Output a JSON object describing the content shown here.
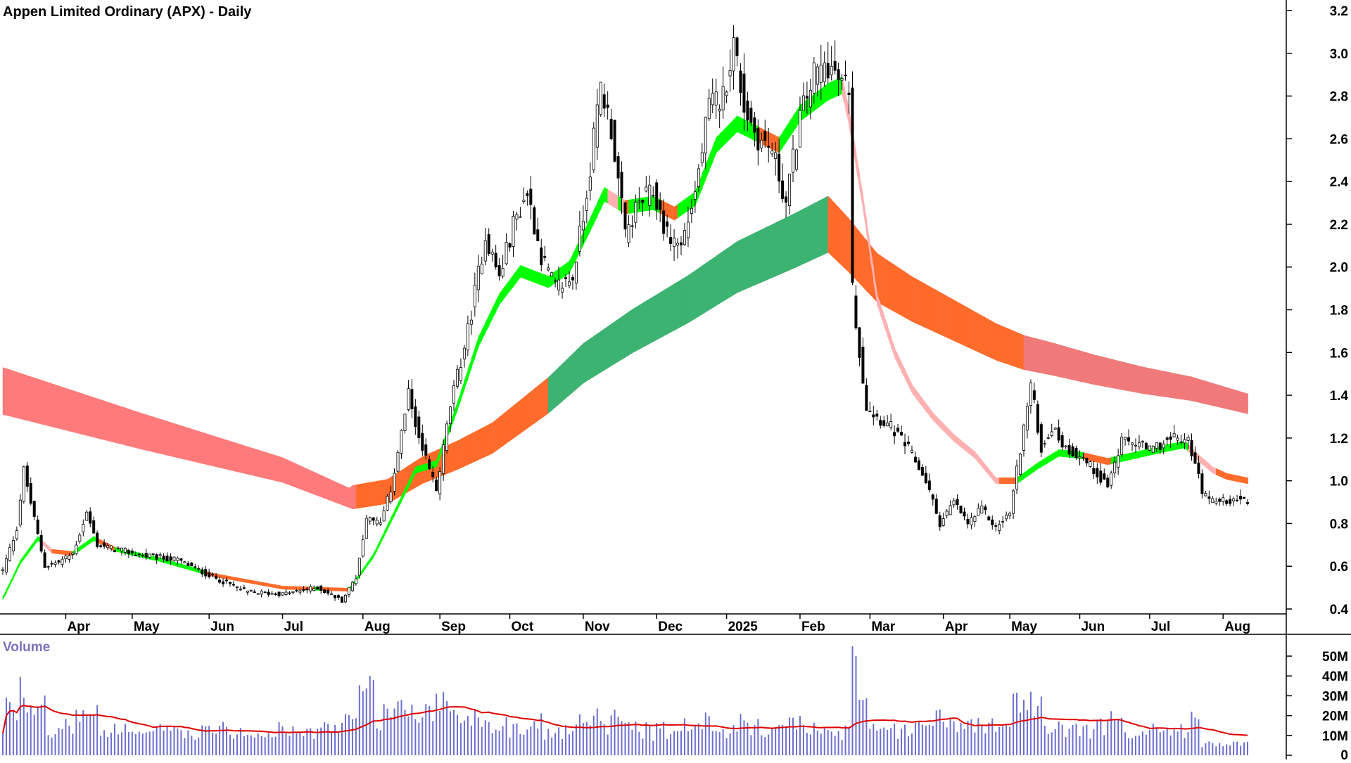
{
  "chart_data": {
    "type": "candlestick",
    "title": "Appen Limited Ordinary (APX) - Daily",
    "price_axis": {
      "ticks": [
        0.4,
        0.6,
        0.8,
        1.0,
        1.2,
        1.4,
        1.6,
        1.8,
        2.0,
        2.2,
        2.4,
        2.6,
        2.8,
        3.0,
        3.2
      ],
      "tick_labels": [
        "0.4",
        "0.6",
        "0.8",
        "1.0",
        "1.2",
        "1.4",
        "1.6",
        "1.8",
        "2.0",
        "2.2",
        "2.4",
        "2.6",
        "2.8",
        "3.0",
        "3.2"
      ],
      "range": [
        0.35,
        3.25
      ]
    },
    "x_axis": {
      "months": [
        "Apr",
        "May",
        "Jun",
        "Jul",
        "Aug",
        "Sep",
        "Oct",
        "Nov",
        "Dec",
        "2025",
        "Feb",
        "Mar",
        "Apr",
        "May",
        "Jun",
        "Jul",
        "Aug"
      ],
      "month_start_index": [
        18,
        37,
        59,
        80,
        103,
        125,
        145,
        166,
        187,
        207,
        228,
        248,
        269,
        288,
        308,
        328,
        349
      ]
    },
    "volume_axis": {
      "label": "Volume",
      "tick_labels": [
        "0",
        "10M",
        "20M",
        "30M",
        "40M",
        "50M"
      ],
      "ticks": [
        0,
        10,
        20,
        30,
        40,
        50
      ],
      "unit": "millions"
    },
    "anchors": {
      "close": [
        [
          0,
          0.58
        ],
        [
          4,
          0.78
        ],
        [
          6,
          1.05
        ],
        [
          9,
          0.82
        ],
        [
          12,
          0.6
        ],
        [
          16,
          0.62
        ],
        [
          20,
          0.66
        ],
        [
          24,
          0.85
        ],
        [
          27,
          0.7
        ],
        [
          32,
          0.68
        ],
        [
          40,
          0.65
        ],
        [
          50,
          0.63
        ],
        [
          60,
          0.55
        ],
        [
          70,
          0.48
        ],
        [
          80,
          0.47
        ],
        [
          90,
          0.5
        ],
        [
          97,
          0.44
        ],
        [
          101,
          0.55
        ],
        [
          104,
          0.82
        ],
        [
          108,
          0.8
        ],
        [
          111,
          0.96
        ],
        [
          116,
          1.4
        ],
        [
          120,
          1.15
        ],
        [
          124,
          0.95
        ],
        [
          128,
          1.35
        ],
        [
          133,
          1.7
        ],
        [
          138,
          2.15
        ],
        [
          142,
          1.95
        ],
        [
          146,
          2.2
        ],
        [
          150,
          2.35
        ],
        [
          154,
          2.05
        ],
        [
          158,
          1.9
        ],
        [
          163,
          1.95
        ],
        [
          167,
          2.35
        ],
        [
          171,
          2.85
        ],
        [
          174,
          2.65
        ],
        [
          178,
          2.15
        ],
        [
          182,
          2.3
        ],
        [
          186,
          2.35
        ],
        [
          190,
          2.15
        ],
        [
          194,
          2.1
        ],
        [
          198,
          2.35
        ],
        [
          202,
          2.75
        ],
        [
          206,
          2.8
        ],
        [
          209,
          3.05
        ],
        [
          212,
          2.75
        ],
        [
          216,
          2.6
        ],
        [
          220,
          2.55
        ],
        [
          224,
          2.3
        ],
        [
          228,
          2.7
        ],
        [
          232,
          2.9
        ],
        [
          236,
          2.95
        ],
        [
          240,
          2.85
        ],
        [
          242,
          2.85
        ],
        [
          243,
          1.9
        ],
        [
          245,
          1.6
        ],
        [
          247,
          1.35
        ],
        [
          250,
          1.3
        ],
        [
          254,
          1.25
        ],
        [
          259,
          1.15
        ],
        [
          264,
          1.0
        ],
        [
          268,
          0.8
        ],
        [
          272,
          0.9
        ],
        [
          276,
          0.8
        ],
        [
          280,
          0.87
        ],
        [
          284,
          0.78
        ],
        [
          288,
          0.85
        ],
        [
          291,
          1.15
        ],
        [
          294,
          1.45
        ],
        [
          297,
          1.15
        ],
        [
          300,
          1.25
        ],
        [
          304,
          1.15
        ],
        [
          308,
          1.12
        ],
        [
          312,
          1.05
        ],
        [
          316,
          0.98
        ],
        [
          320,
          1.18
        ],
        [
          324,
          1.18
        ],
        [
          328,
          1.14
        ],
        [
          332,
          1.18
        ],
        [
          336,
          1.2
        ],
        [
          339,
          1.18
        ],
        [
          341,
          1.1
        ],
        [
          343,
          0.93
        ],
        [
          347,
          0.9
        ],
        [
          353,
          0.92
        ],
        [
          356,
          0.89
        ]
      ],
      "ma_fast": [
        [
          0,
          0.45
        ],
        [
          5,
          0.62
        ],
        [
          10,
          0.73
        ],
        [
          14,
          0.67
        ],
        [
          20,
          0.66
        ],
        [
          26,
          0.73
        ],
        [
          32,
          0.68
        ],
        [
          45,
          0.63
        ],
        [
          60,
          0.56
        ],
        [
          80,
          0.5
        ],
        [
          99,
          0.49
        ],
        [
          106,
          0.65
        ],
        [
          112,
          0.85
        ],
        [
          118,
          1.05
        ],
        [
          124,
          1.08
        ],
        [
          130,
          1.35
        ],
        [
          136,
          1.65
        ],
        [
          142,
          1.85
        ],
        [
          148,
          1.98
        ],
        [
          156,
          1.93
        ],
        [
          162,
          2.0
        ],
        [
          168,
          2.2
        ],
        [
          172,
          2.34
        ],
        [
          178,
          2.28
        ],
        [
          186,
          2.3
        ],
        [
          192,
          2.25
        ],
        [
          198,
          2.32
        ],
        [
          204,
          2.57
        ],
        [
          210,
          2.67
        ],
        [
          216,
          2.62
        ],
        [
          222,
          2.57
        ],
        [
          228,
          2.72
        ],
        [
          236,
          2.82
        ],
        [
          240,
          2.85
        ],
        [
          242,
          2.7
        ],
        [
          246,
          2.3
        ],
        [
          250,
          1.85
        ],
        [
          255,
          1.6
        ],
        [
          260,
          1.43
        ],
        [
          266,
          1.3
        ],
        [
          272,
          1.2
        ],
        [
          278,
          1.12
        ],
        [
          284,
          1.0
        ],
        [
          290,
          1.0
        ],
        [
          296,
          1.07
        ],
        [
          302,
          1.13
        ],
        [
          308,
          1.12
        ],
        [
          316,
          1.09
        ],
        [
          324,
          1.12
        ],
        [
          332,
          1.15
        ],
        [
          338,
          1.17
        ],
        [
          341,
          1.12
        ],
        [
          346,
          1.05
        ],
        [
          350,
          1.02
        ],
        [
          356,
          1.0
        ]
      ],
      "ma_slow": [
        [
          0,
          1.42
        ],
        [
          40,
          1.23
        ],
        [
          80,
          1.05
        ],
        [
          99,
          0.92
        ],
        [
          110,
          0.95
        ],
        [
          120,
          1.05
        ],
        [
          130,
          1.12
        ],
        [
          140,
          1.2
        ],
        [
          156,
          1.4
        ],
        [
          166,
          1.55
        ],
        [
          180,
          1.7
        ],
        [
          196,
          1.85
        ],
        [
          210,
          2.0
        ],
        [
          226,
          2.12
        ],
        [
          236,
          2.2
        ],
        [
          242,
          2.1
        ],
        [
          250,
          1.95
        ],
        [
          260,
          1.85
        ],
        [
          272,
          1.75
        ],
        [
          284,
          1.65
        ],
        [
          292,
          1.6
        ],
        [
          300,
          1.57
        ],
        [
          312,
          1.52
        ],
        [
          326,
          1.47
        ],
        [
          340,
          1.43
        ],
        [
          356,
          1.36
        ]
      ]
    }
  }
}
